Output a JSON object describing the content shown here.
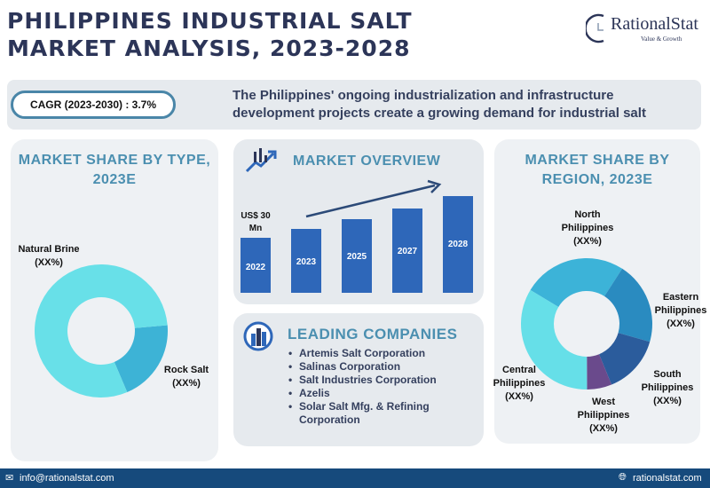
{
  "header": {
    "title_line1": "PHILIPPINES INDUSTRIAL SALT",
    "title_line2": "MARKET ANALYSIS, 2023-2028",
    "logo_name": "RationalStat",
    "logo_tagline": "Value & Growth"
  },
  "banner": {
    "cagr": "CAGR (2023-2030) : 3.7%",
    "text": "The Philippines' ongoing industrialization and infrastructure development projects create a growing demand for industrial salt"
  },
  "colors": {
    "title": "#2c3558",
    "accent": "#4b8fb0",
    "bar": "#2e67b9",
    "footer": "#164a7c"
  },
  "chart_data": [
    {
      "type": "pie",
      "title": "MARKET SHARE BY TYPE, 2023E",
      "donut": true,
      "slices": [
        {
          "label": "Natural Brine",
          "value_label": "(XX%)",
          "approx_share": 80,
          "color": "#68e0e8"
        },
        {
          "label": "Rock Salt",
          "value_label": "(XX%)",
          "approx_share": 20,
          "color": "#3db3d6"
        }
      ]
    },
    {
      "type": "bar",
      "title": "MARKET OVERVIEW",
      "categories": [
        "2022",
        "2023",
        "2025",
        "2027",
        "2028"
      ],
      "annotation": "US$ 30 Mn",
      "trend": "increasing"
    },
    {
      "type": "pie",
      "title": "MARKET SHARE BY REGION, 2023E",
      "donut": true,
      "slices": [
        {
          "label": "North Philippines",
          "value_label": "(XX%)",
          "approx_share": 25.5,
          "color": "#3cb3d8"
        },
        {
          "label": "Eastern Philippines",
          "value_label": "(XX%)",
          "approx_share": 20.3,
          "color": "#2a8bc0"
        },
        {
          "label": "South Philippines",
          "value_label": "(XX%)",
          "approx_share": 14.4,
          "color": "#2b5c9c"
        },
        {
          "label": "West Philippines",
          "value_label": "(XX%)",
          "approx_share": 6.1,
          "color": "#6a4a8c"
        },
        {
          "label": "Central Philippines",
          "value_label": "(XX%)",
          "approx_share": 33.7,
          "color": "#66dfe8"
        }
      ]
    }
  ],
  "companies": {
    "title": "LEADING COMPANIES",
    "items": [
      "Artemis Salt Corporation",
      "Salinas Corporation",
      "Salt Industries Corporation",
      "Azelis",
      "Solar Salt Mfg. & Refining Corporation"
    ]
  },
  "footer": {
    "email": "info@rationalstat.com",
    "website": "rationalstat.com"
  }
}
